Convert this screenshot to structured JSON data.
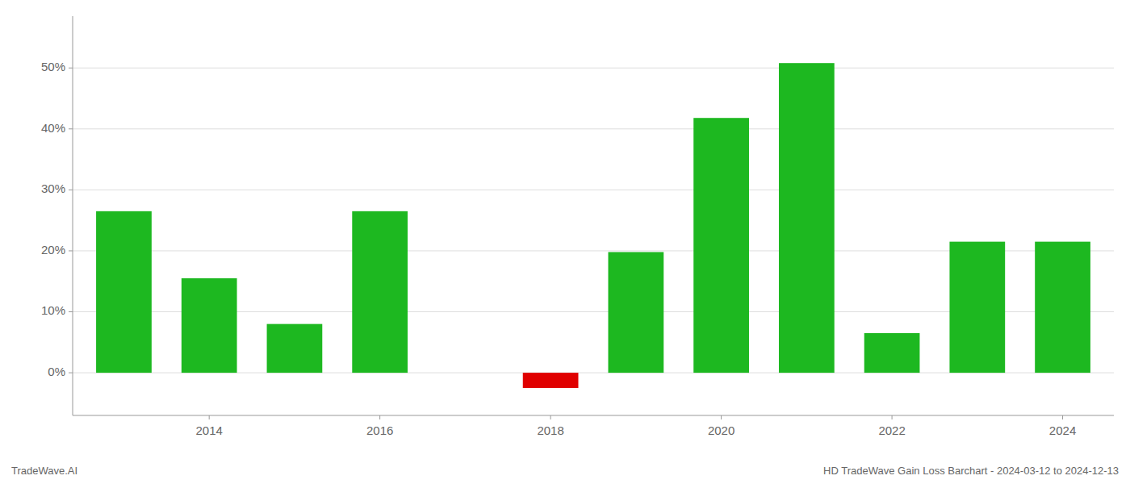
{
  "chart_data": {
    "type": "bar",
    "title": "HD TradeWave Gain Loss Barchart - 2024-03-12 to 2024-12-13",
    "annotations": [
      "TradeWave.AI"
    ],
    "x": [
      2013,
      2014,
      2015,
      2016,
      2017,
      2018,
      2019,
      2020,
      2021,
      2022,
      2023,
      2024
    ],
    "values": [
      0.265,
      0.155,
      0.08,
      0.265,
      0.0,
      -0.025,
      0.198,
      0.418,
      0.508,
      0.065,
      0.215,
      0.215
    ],
    "colors": [
      "#1db820",
      "#1db820",
      "#1db820",
      "#1db820",
      "#1db820",
      "#e00000",
      "#1db820",
      "#1db820",
      "#1db820",
      "#1db820",
      "#1db820",
      "#1db820"
    ],
    "xlim": [
      2012.4,
      2024.6
    ],
    "xticks": [
      2014,
      2016,
      2018,
      2020,
      2022,
      2024
    ],
    "ylim": [
      -0.07,
      0.585
    ],
    "yticks": [
      {
        "value": 0.0,
        "label": "0%"
      },
      {
        "value": 0.1,
        "label": "10%"
      },
      {
        "value": 0.2,
        "label": "20%"
      },
      {
        "value": 0.3,
        "label": "30%"
      },
      {
        "value": 0.4,
        "label": "40%"
      },
      {
        "value": 0.5,
        "label": "50%"
      }
    ],
    "grid": true
  }
}
